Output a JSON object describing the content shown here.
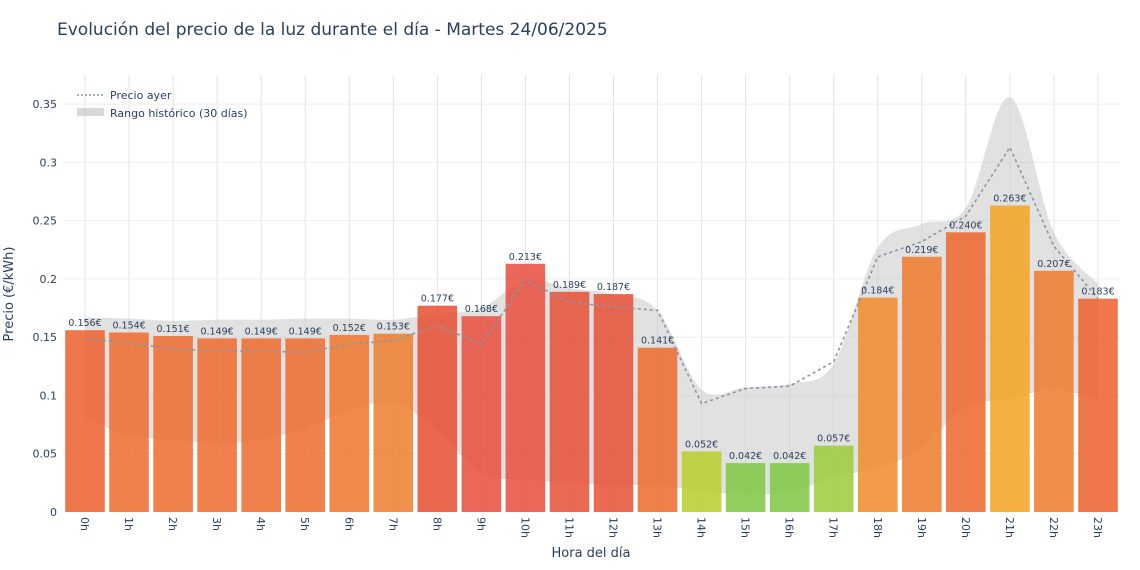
{
  "chart_data": {
    "type": "bar",
    "title": "Evolución del precio de la luz durante el día - Martes 24/06/2025",
    "xlabel": "Hora del día",
    "ylabel": "Precio (€/kWh)",
    "ylim": [
      0,
      0.375
    ],
    "yticks": [
      0,
      0.05,
      0.1,
      0.15,
      0.2,
      0.25,
      0.3,
      0.35
    ],
    "ytick_labels": [
      "0",
      "0.05",
      "0.1",
      "0.15",
      "0.2",
      "0.25",
      "0.3",
      "0.35"
    ],
    "grid": true,
    "legend_position": "top-left",
    "categories": [
      "0h",
      "1h",
      "2h",
      "3h",
      "4h",
      "5h",
      "6h",
      "7h",
      "8h",
      "9h",
      "10h",
      "11h",
      "12h",
      "13h",
      "14h",
      "15h",
      "16h",
      "17h",
      "18h",
      "19h",
      "20h",
      "21h",
      "22h",
      "23h"
    ],
    "values": [
      0.156,
      0.154,
      0.151,
      0.149,
      0.149,
      0.149,
      0.152,
      0.153,
      0.177,
      0.168,
      0.213,
      0.189,
      0.187,
      0.141,
      0.052,
      0.042,
      0.042,
      0.057,
      0.184,
      0.219,
      0.24,
      0.263,
      0.207,
      0.183
    ],
    "value_labels": [
      "0.156€",
      "0.154€",
      "0.151€",
      "0.149€",
      "0.149€",
      "0.149€",
      "0.152€",
      "0.153€",
      "0.177€",
      "0.168€",
      "0.213€",
      "0.189€",
      "0.187€",
      "0.141€",
      "0.052€",
      "0.042€",
      "0.042€",
      "0.057€",
      "0.184€",
      "0.219€",
      "0.240€",
      "0.263€",
      "0.207€",
      "0.183€"
    ],
    "bar_colors": [
      "#ec5f2c",
      "#ed6a2d",
      "#ed6a2d",
      "#ed6a2d",
      "#ed6a2d",
      "#ed6a2d",
      "#ee752d",
      "#ee7b2e",
      "#e84e31",
      "#e74c3c",
      "#e74c3c",
      "#e54f35",
      "#e54f35",
      "#ec6a2d",
      "#b8cc2a",
      "#7ec843",
      "#7ec843",
      "#9ccb3a",
      "#f08a2a",
      "#ef7a2c",
      "#ed662d",
      "#f2a320",
      "#ef7a2c",
      "#ec5f2c"
    ],
    "series": [
      {
        "name": "Precio ayer",
        "values": [
          0.149,
          0.145,
          0.14,
          0.138,
          0.138,
          0.137,
          0.144,
          0.147,
          0.16,
          0.144,
          0.199,
          0.18,
          0.176,
          0.173,
          0.093,
          0.106,
          0.108,
          0.129,
          0.219,
          0.232,
          0.254,
          0.313,
          0.228,
          0.183
        ],
        "color": "#8a95a5"
      },
      {
        "name": "Rango histórico (30 días)",
        "upper": [
          0.167,
          0.166,
          0.164,
          0.165,
          0.165,
          0.166,
          0.166,
          0.165,
          0.17,
          0.175,
          0.199,
          0.192,
          0.187,
          0.173,
          0.105,
          0.107,
          0.11,
          0.127,
          0.227,
          0.247,
          0.261,
          0.356,
          0.24,
          0.196
        ],
        "lower": [
          0.08,
          0.066,
          0.062,
          0.059,
          0.062,
          0.072,
          0.087,
          0.094,
          0.07,
          0.033,
          0.028,
          0.025,
          0.023,
          0.023,
          0.018,
          0.015,
          0.017,
          0.03,
          0.038,
          0.055,
          0.09,
          0.097,
          0.105,
          0.096
        ],
        "color": "#c8c8c8"
      }
    ]
  }
}
